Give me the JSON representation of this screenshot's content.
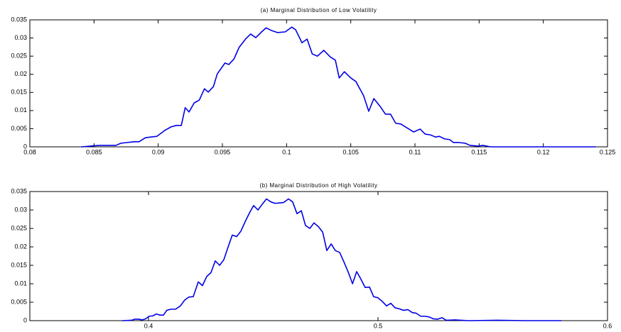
{
  "chart_data": [
    {
      "type": "line",
      "title": "(a) Marginal Distribution of Low Volatility",
      "color": "#0000e6",
      "x": [
        0.084,
        0.0854,
        0.086,
        0.0867,
        0.0871,
        0.0876,
        0.0881,
        0.0885,
        0.089,
        0.0894,
        0.0899,
        0.0905,
        0.091,
        0.0914,
        0.0918,
        0.0921,
        0.0924,
        0.0928,
        0.0932,
        0.0936,
        0.0939,
        0.0943,
        0.0946,
        0.0952,
        0.0955,
        0.0959,
        0.0963,
        0.0968,
        0.0972,
        0.0976,
        0.098,
        0.0984,
        0.0988,
        0.0993,
        0.0999,
        0.1004,
        0.1007,
        0.1012,
        0.1016,
        0.102,
        0.1024,
        0.1029,
        0.1034,
        0.1038,
        0.1041,
        0.1045,
        0.105,
        0.1054,
        0.106,
        0.1064,
        0.1068,
        0.1073,
        0.1077,
        0.1081,
        0.1085,
        0.1089,
        0.1099,
        0.1104,
        0.1108,
        0.1112,
        0.1116,
        0.1119,
        0.1123,
        0.1127,
        0.113,
        0.1134,
        0.1139,
        0.1143,
        0.1149,
        0.1153,
        0.1159,
        0.1175,
        0.1197,
        0.122,
        0.1241
      ],
      "values": [
        0,
        0.0004,
        0.0004,
        0.0004,
        0.001,
        0.0012,
        0.0014,
        0.0014,
        0.0025,
        0.0027,
        0.0029,
        0.0045,
        0.0055,
        0.0059,
        0.0059,
        0.0108,
        0.0096,
        0.0121,
        0.0129,
        0.016,
        0.0151,
        0.0166,
        0.0201,
        0.0231,
        0.0227,
        0.0242,
        0.0274,
        0.0297,
        0.0311,
        0.0301,
        0.0315,
        0.0328,
        0.0321,
        0.0315,
        0.0317,
        0.033,
        0.0323,
        0.0287,
        0.0297,
        0.0256,
        0.025,
        0.0266,
        0.0248,
        0.0239,
        0.019,
        0.0207,
        0.019,
        0.018,
        0.0141,
        0.0098,
        0.0133,
        0.0111,
        0.009,
        0.009,
        0.0065,
        0.0063,
        0.0041,
        0.0049,
        0.0035,
        0.0033,
        0.0027,
        0.0029,
        0.0022,
        0.002,
        0.0012,
        0.0012,
        0.001,
        0.0004,
        0.0002,
        0.0004,
        0,
        0,
        0,
        0,
        0
      ],
      "xlim": [
        0.08,
        0.125
      ],
      "ylim": [
        0,
        0.035
      ],
      "xticks": [
        0.08,
        0.085,
        0.09,
        0.095,
        0.1,
        0.105,
        0.11,
        0.115,
        0.12,
        0.125
      ],
      "yticks": [
        0,
        0.005,
        0.01,
        0.015,
        0.02,
        0.025,
        0.03,
        0.035
      ]
    },
    {
      "type": "line",
      "title": "(b) Marginal Distribution of High Volatility",
      "color": "#0000e6",
      "x": [
        0.3885,
        0.3926,
        0.3941,
        0.3957,
        0.3972,
        0.3988,
        0.4003,
        0.4019,
        0.4034,
        0.405,
        0.4065,
        0.408,
        0.4096,
        0.4118,
        0.4139,
        0.4158,
        0.4176,
        0.4195,
        0.4217,
        0.4235,
        0.4254,
        0.4272,
        0.4291,
        0.431,
        0.4328,
        0.4347,
        0.4365,
        0.4384,
        0.4402,
        0.4421,
        0.444,
        0.4458,
        0.4477,
        0.4495,
        0.4514,
        0.4533,
        0.4551,
        0.4588,
        0.461,
        0.4628,
        0.4647,
        0.4666,
        0.4684,
        0.4703,
        0.4721,
        0.474,
        0.4759,
        0.4777,
        0.4796,
        0.4814,
        0.4833,
        0.4851,
        0.487,
        0.4889,
        0.4907,
        0.4926,
        0.4944,
        0.4963,
        0.4981,
        0.5,
        0.5019,
        0.5037,
        0.5056,
        0.5074,
        0.5093,
        0.5111,
        0.513,
        0.5149,
        0.5167,
        0.5186,
        0.5204,
        0.5223,
        0.5241,
        0.526,
        0.5279,
        0.5297,
        0.5334,
        0.5396,
        0.552,
        0.5644,
        0.5799
      ],
      "values": [
        0,
        0.0001,
        0.0004,
        0.0004,
        0.0002,
        0.0005,
        0.0012,
        0.0013,
        0.0018,
        0.0015,
        0.0015,
        0.0028,
        0.0031,
        0.0031,
        0.004,
        0.0056,
        0.0064,
        0.0065,
        0.0105,
        0.0095,
        0.012,
        0.013,
        0.0162,
        0.015,
        0.0165,
        0.02,
        0.0232,
        0.0228,
        0.0242,
        0.0268,
        0.0292,
        0.0312,
        0.03,
        0.0315,
        0.033,
        0.0322,
        0.0318,
        0.032,
        0.033,
        0.0322,
        0.029,
        0.0298,
        0.0258,
        0.025,
        0.0265,
        0.0255,
        0.024,
        0.019,
        0.0208,
        0.019,
        0.0185,
        0.016,
        0.0132,
        0.01,
        0.0133,
        0.0112,
        0.009,
        0.0091,
        0.0065,
        0.0062,
        0.0052,
        0.004,
        0.0047,
        0.0035,
        0.0032,
        0.0028,
        0.003,
        0.0022,
        0.002,
        0.0012,
        0.0012,
        0.001,
        0.0005,
        0.0004,
        0.0008,
        0.0001,
        0.0002,
        0,
        0.0001,
        0,
        0
      ],
      "xlim": [
        0.3483,
        0.6
      ],
      "ylim": [
        0,
        0.035
      ],
      "xticks": [
        0.4,
        0.5,
        0.6
      ],
      "yticks": [
        0,
        0.005,
        0.01,
        0.015,
        0.02,
        0.025,
        0.03,
        0.035
      ]
    }
  ]
}
